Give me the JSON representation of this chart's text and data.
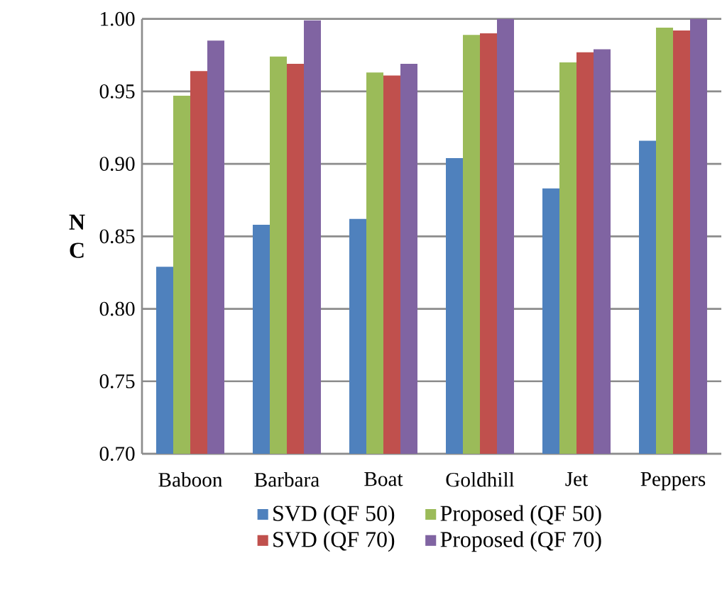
{
  "chart_data": {
    "type": "bar",
    "ylabel": "N C",
    "categories": [
      "Baboon",
      "Barbara",
      "Boat",
      "Goldhill",
      "Jet",
      "Peppers"
    ],
    "series": [
      {
        "name": "SVD (QF 50)",
        "color": "#4f81bd",
        "values": [
          0.829,
          0.858,
          0.862,
          0.904,
          0.883,
          0.916
        ]
      },
      {
        "name": "Proposed (QF 50)",
        "color": "#9bbb59",
        "values": [
          0.947,
          0.974,
          0.963,
          0.989,
          0.97,
          0.994
        ]
      },
      {
        "name": "SVD (QF 70)",
        "color": "#c0504d",
        "values": [
          0.964,
          0.969,
          0.961,
          0.99,
          0.977,
          0.992
        ]
      },
      {
        "name": "Proposed (QF 70)",
        "color": "#8064a2",
        "values": [
          0.985,
          0.999,
          0.969,
          1.0,
          0.979,
          1.0
        ]
      }
    ],
    "ylim": [
      0.7,
      1.0
    ],
    "yticks": [
      {
        "value": 0.7,
        "label": "0.70"
      },
      {
        "value": 0.75,
        "label": "0.75"
      },
      {
        "value": 0.8,
        "label": "0.80"
      },
      {
        "value": 0.85,
        "label": "0.85"
      },
      {
        "value": 0.9,
        "label": "0.90"
      },
      {
        "value": 0.95,
        "label": "0.95"
      },
      {
        "value": 1.0,
        "label": "1.00"
      }
    ],
    "grid": "y",
    "legend": "bottom"
  }
}
